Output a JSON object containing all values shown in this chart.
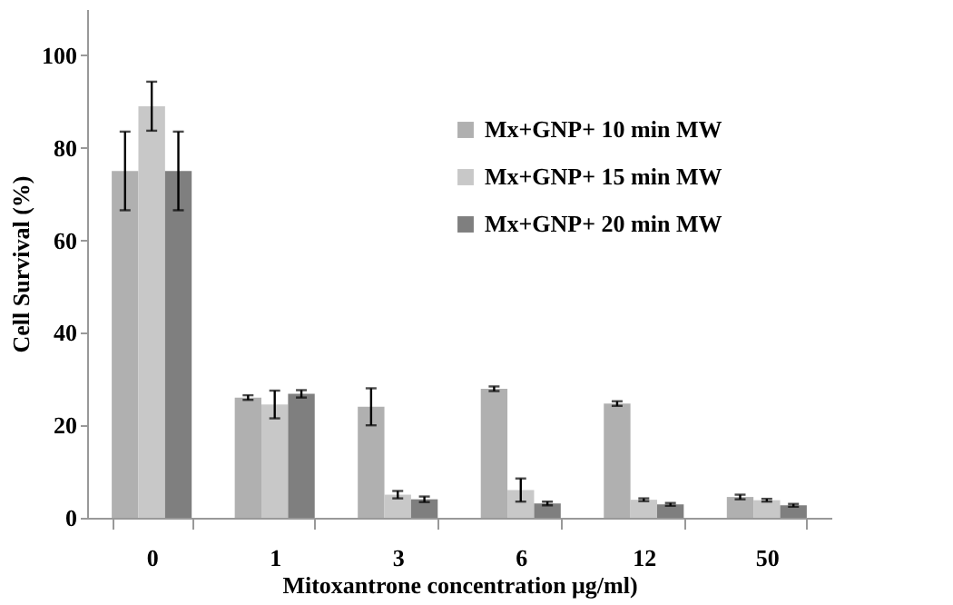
{
  "chart_data": {
    "type": "bar",
    "xlabel": "Mitoxantrone concentration μg/ml)",
    "ylabel": "Cell Survival (%)",
    "categories": [
      "0",
      "1",
      "3",
      "6",
      "12",
      "50"
    ],
    "series": [
      {
        "name": "Mx+GNP+ 10 min MW",
        "color": "#b0b0b0",
        "values": [
          75,
          26,
          24,
          27.9,
          24.7,
          4.5
        ],
        "errors": [
          8.5,
          0.5,
          4,
          0.5,
          0.5,
          0.5
        ]
      },
      {
        "name": "Mx+GNP+ 15 min MW",
        "color": "#c8c8c8",
        "values": [
          89,
          24.5,
          5,
          6,
          3.9,
          3.8
        ],
        "errors": [
          5.3,
          3,
          0.8,
          2.5,
          0.3,
          0.3
        ]
      },
      {
        "name": "Mx+GNP+ 20 min MW",
        "color": "#7f7f7f",
        "values": [
          75,
          26.8,
          4,
          3.1,
          2.9,
          2.7
        ],
        "errors": [
          8.5,
          0.8,
          0.6,
          0.4,
          0.3,
          0.3
        ]
      }
    ],
    "ylim": [
      0,
      110
    ],
    "yticks": [
      0,
      20,
      40,
      60,
      80,
      100
    ],
    "grid": false,
    "legend": "top right"
  }
}
